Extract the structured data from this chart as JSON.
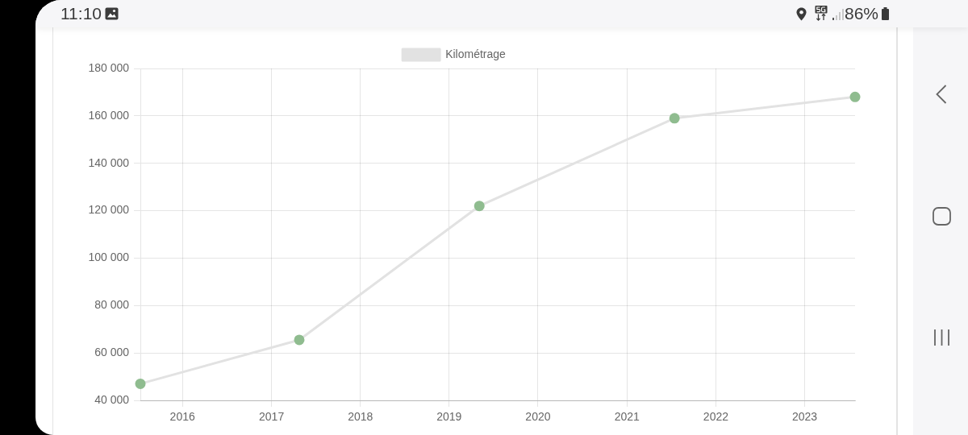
{
  "chart_data": {
    "type": "line",
    "annotations": [
      "11:10",
      "86%"
    ],
    "x": [
      "2015-07-12",
      "2017-04-25",
      "2019-05-05",
      "2021-07-15",
      "2023-07-27"
    ],
    "series": [
      {
        "name": "Kilométrage",
        "color": "#e2e2e2",
        "colors": [
          "#8fbc8f",
          "#8fbc8f",
          "#8fbc8f",
          "#8fbc8f",
          "#8fbc8f"
        ],
        "values": [
          47000,
          65500,
          122000,
          159000,
          168000
        ]
      }
    ],
    "xlim": [
      "2015-07-12",
      "2023-07-27"
    ],
    "xticks": [
      "2016",
      "2017",
      "2018",
      "2019",
      "2020",
      "2021",
      "2022",
      "2023"
    ],
    "ylim": [
      40000,
      180000
    ],
    "yticks": [
      {
        "value": 40000,
        "label": "40 000"
      },
      {
        "value": 60000,
        "label": "60 000"
      },
      {
        "value": 80000,
        "label": "80 000"
      },
      {
        "value": 100000,
        "label": "100 000"
      },
      {
        "value": 120000,
        "label": "120 000"
      },
      {
        "value": 140000,
        "label": "140 000"
      },
      {
        "value": 160000,
        "label": "160 000"
      },
      {
        "value": 180000,
        "label": "180 000"
      }
    ],
    "grid": true,
    "legend": "top",
    "marker": "circle",
    "line_style": "solid"
  }
}
